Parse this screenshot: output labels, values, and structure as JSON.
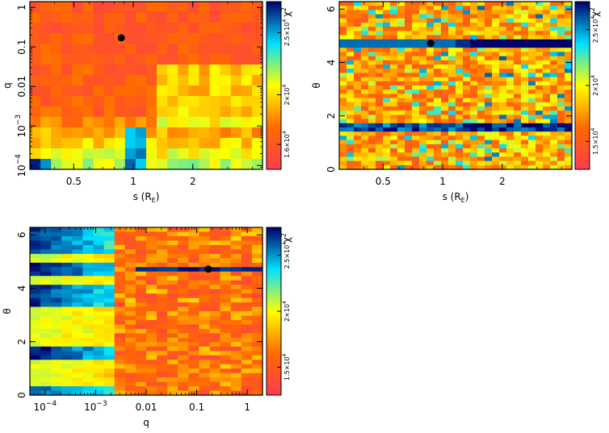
{
  "chart_data": [
    {
      "type": "heatmap",
      "id": "s-q",
      "xlabel": "s (R",
      "xlabel_sub": "E",
      "xlabel_close": ")",
      "ylabel": "q",
      "x_scale": "log",
      "y_scale": "log",
      "xlim": [
        0.3,
        4.5
      ],
      "ylim": [
        8e-05,
        1.4
      ],
      "xticks": [
        {
          "value": 0.5,
          "label": "0.5"
        },
        {
          "value": 1,
          "label": "1"
        },
        {
          "value": 2,
          "label": "2"
        }
      ],
      "yticks": [
        {
          "value": 0.0001,
          "label": "10",
          "exp": "−4"
        },
        {
          "value": 0.001,
          "label": "10",
          "exp": "−3"
        },
        {
          "value": 0.01,
          "label": "0.01"
        },
        {
          "value": 0.1,
          "label": "0.1"
        },
        {
          "value": 1,
          "label": "1"
        }
      ],
      "colorbar": {
        "label": "χ",
        "label_exp": "2",
        "ticks": [
          {
            "value": 16000,
            "label": "1.6×10",
            "exp": "4"
          },
          {
            "value": 20000,
            "label": "2×10",
            "exp": "4"
          },
          {
            "value": 25000,
            "label": "2.5×10",
            "exp": "4"
          }
        ],
        "range": [
          14000,
          27500
        ]
      },
      "best_fit": {
        "x": 0.87,
        "y": 0.17
      },
      "grid": "off"
    },
    {
      "type": "heatmap",
      "id": "s-theta",
      "xlabel": "s (R",
      "xlabel_sub": "E",
      "xlabel_close": ")",
      "ylabel": "θ",
      "x_scale": "log",
      "y_scale": "linear",
      "xlim": [
        0.3,
        4.5
      ],
      "ylim": [
        0,
        6.28
      ],
      "xticks": [
        {
          "value": 0.5,
          "label": "0.5"
        },
        {
          "value": 1,
          "label": "1"
        },
        {
          "value": 2,
          "label": "2"
        }
      ],
      "yticks": [
        {
          "value": 0,
          "label": "0"
        },
        {
          "value": 2,
          "label": "2"
        },
        {
          "value": 4,
          "label": "4"
        },
        {
          "value": 6,
          "label": "6"
        }
      ],
      "colorbar": {
        "label": "χ",
        "label_exp": "2",
        "ticks": [
          {
            "value": 15000,
            "label": "1.5×10",
            "exp": "4"
          },
          {
            "value": 20000,
            "label": "2×10",
            "exp": "4"
          },
          {
            "value": 25000,
            "label": "2.5×10",
            "exp": "4"
          }
        ],
        "range": [
          12500,
          27500
        ]
      },
      "best_fit": {
        "x": 0.87,
        "y": 4.72
      },
      "grid": "off"
    },
    {
      "type": "heatmap",
      "id": "q-theta",
      "xlabel": "q",
      "xlabel_sub": "",
      "xlabel_close": "",
      "ylabel": "θ",
      "x_scale": "log",
      "y_scale": "linear",
      "xlim": [
        5e-05,
        2
      ],
      "ylim": [
        0,
        6.28
      ],
      "xticks": [
        {
          "value": 0.0001,
          "label": "10",
          "exp": "−4"
        },
        {
          "value": 0.001,
          "label": "10",
          "exp": "−3"
        },
        {
          "value": 0.01,
          "label": "0.01"
        },
        {
          "value": 0.1,
          "label": "0.1"
        },
        {
          "value": 1,
          "label": "1"
        }
      ],
      "yticks": [
        {
          "value": 0,
          "label": "0"
        },
        {
          "value": 2,
          "label": "2"
        },
        {
          "value": 4,
          "label": "4"
        },
        {
          "value": 6,
          "label": "6"
        }
      ],
      "colorbar": {
        "label": "χ",
        "label_exp": "2",
        "ticks": [
          {
            "value": 15000,
            "label": "1.5×10",
            "exp": "4"
          },
          {
            "value": 20000,
            "label": "2×10",
            "exp": "4"
          },
          {
            "value": 25000,
            "label": "2.5×10",
            "exp": "4"
          }
        ],
        "range": [
          12500,
          27500
        ]
      },
      "best_fit": {
        "x": 0.17,
        "y": 4.72
      },
      "grid": "off"
    }
  ]
}
